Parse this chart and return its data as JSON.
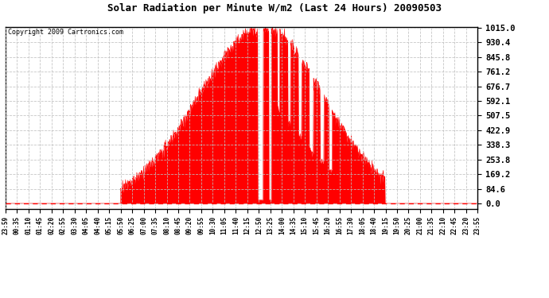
{
  "title": "Solar Radiation per Minute W/m2 (Last 24 Hours) 20090503",
  "copyright": "Copyright 2009 Cartronics.com",
  "bar_color": "#FF0000",
  "dashed_line_color": "#FF0000",
  "background_color": "#FFFFFF",
  "grid_color": "#C0C0C0",
  "yticks": [
    0.0,
    84.6,
    169.2,
    253.8,
    338.3,
    422.9,
    507.5,
    592.1,
    676.7,
    761.2,
    845.8,
    930.4,
    1015.0
  ],
  "ymax": 1015.0,
  "ymin": 0.0,
  "x_labels": [
    "23:59",
    "00:35",
    "01:10",
    "01:45",
    "02:20",
    "02:55",
    "03:30",
    "04:05",
    "04:40",
    "05:15",
    "05:50",
    "06:25",
    "07:00",
    "07:35",
    "08:10",
    "08:45",
    "09:20",
    "09:55",
    "10:30",
    "11:05",
    "11:40",
    "12:15",
    "12:50",
    "13:25",
    "14:00",
    "14:35",
    "15:10",
    "15:45",
    "16:20",
    "16:55",
    "17:30",
    "18:05",
    "18:40",
    "19:15",
    "19:50",
    "20:25",
    "21:00",
    "21:35",
    "22:10",
    "22:45",
    "23:20",
    "23:55"
  ],
  "num_points": 1440,
  "sunrise_hour": 5.83,
  "sunset_hour": 19.25,
  "peak_hour": 13.08,
  "peak_value": 1015.0
}
